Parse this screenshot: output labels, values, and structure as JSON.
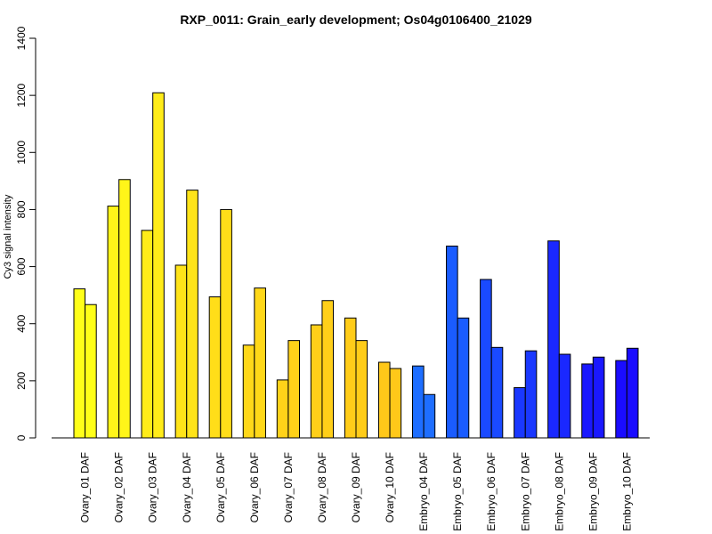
{
  "chart_data": {
    "type": "bar",
    "title": "RXP_0011: Grain_early development; Os04g0106400_21029",
    "xlabel": "",
    "ylabel": "Cy3 signal intensity",
    "ylim": [
      0,
      1400
    ],
    "yticks": [
      0,
      200,
      400,
      600,
      800,
      1000,
      1200,
      1400
    ],
    "grid": false,
    "categories": [
      "Ovary_01 DAF",
      "Ovary_02 DAF",
      "Ovary_03 DAF",
      "Ovary_04 DAF",
      "Ovary_05 DAF",
      "Ovary_06 DAF",
      "Ovary_07 DAF",
      "Ovary_08 DAF",
      "Ovary_09 DAF",
      "Ovary_10 DAF",
      "Embryo_04 DAF",
      "Embryo_05 DAF",
      "Embryo_06 DAF",
      "Embryo_07 DAF",
      "Embryo_08 DAF",
      "Embryo_09 DAF",
      "Embryo_10 DAF"
    ],
    "colors": [
      "#FFFF19",
      "#FFF519",
      "#FFEC19",
      "#FFE419",
      "#FFDE19",
      "#FFD819",
      "#FFD219",
      "#FFCF19",
      "#FFCC19",
      "#FFC819",
      "#1E6EFF",
      "#1A5CFF",
      "#1A4AFF",
      "#1A38FF",
      "#1A28FF",
      "#1A18FF",
      "#1A0CFF"
    ],
    "series": [
      {
        "values": [
          522,
          812,
          727,
          605,
          494,
          325,
          203,
          396,
          420,
          265,
          252,
          672,
          555,
          176,
          690,
          259,
          271
        ]
      },
      {
        "values": [
          467,
          905,
          1209,
          868,
          800,
          525,
          341,
          481,
          341,
          243,
          152,
          420,
          317,
          305,
          293,
          283,
          314
        ]
      }
    ]
  }
}
